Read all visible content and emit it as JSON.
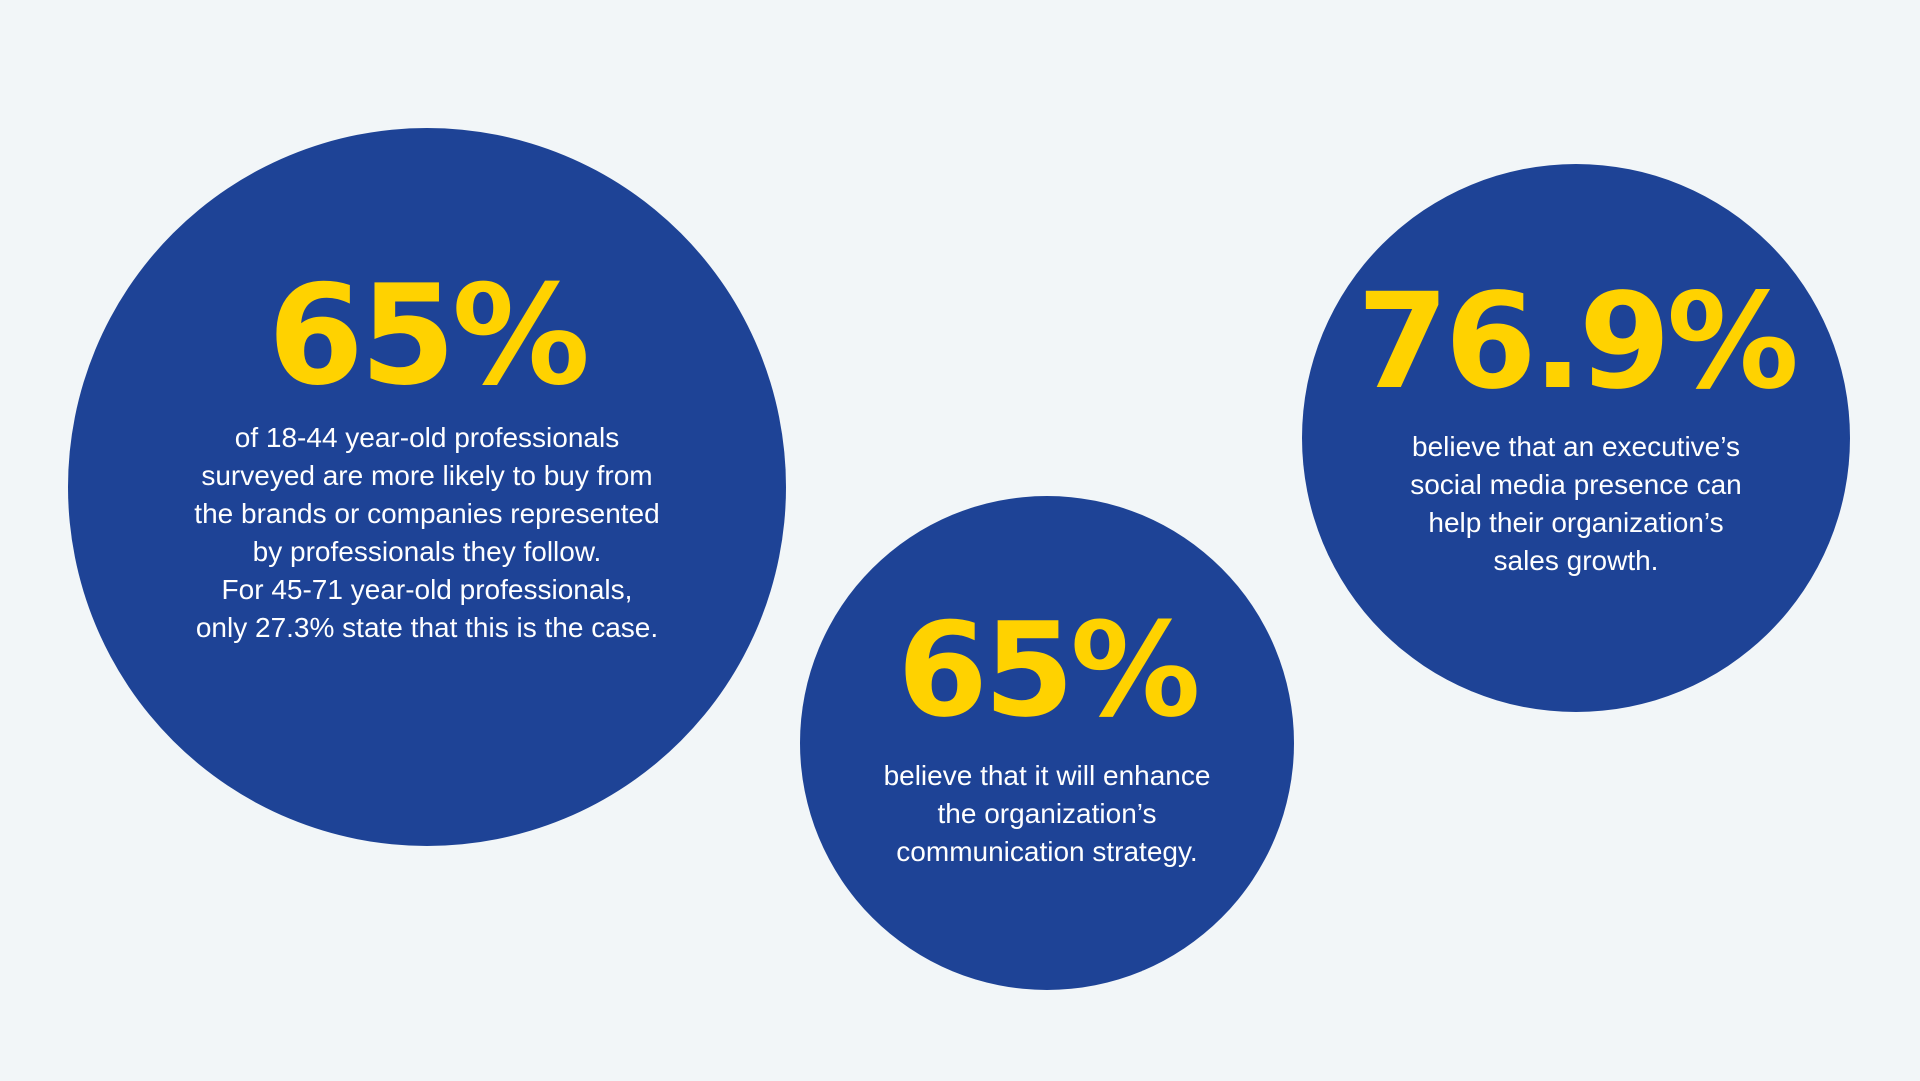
{
  "stats": [
    {
      "value": "65%",
      "description": "of 18-44 year-old professionals\nsurveyed are more likely to buy from\nthe brands or companies represented\nby professionals they follow.\nFor 45-71 year-old professionals,\nonly 27.3% state that this is the case."
    },
    {
      "value": "65%",
      "description": "believe that it will enhance\nthe organization’s\ncommunication strategy."
    },
    {
      "value": "76.9%",
      "description": "believe that an executive’s\nsocial media presence can\nhelp their organization’s\nsales growth."
    }
  ],
  "colors": {
    "background": "#f2f6f8",
    "circle": "#1e4396",
    "accent": "#ffd200",
    "text": "#ffffff"
  }
}
